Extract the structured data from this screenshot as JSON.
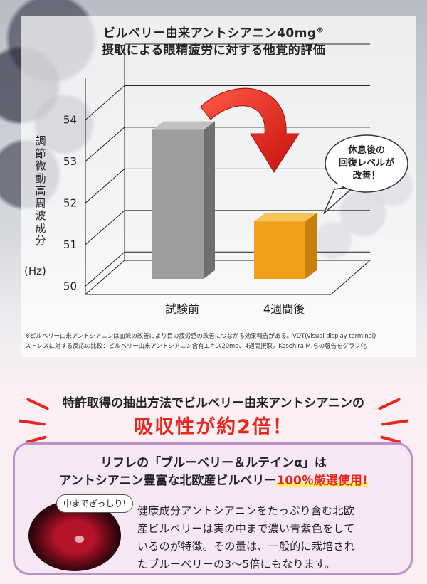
{
  "header": {
    "title_line1": "ビルベリー由来アントシアニン40mg",
    "title_mark": "※",
    "title_line2": "摂取による眼精疲労に対する他覚的評価"
  },
  "chart_data": {
    "type": "bar",
    "categories": [
      "試験前",
      "4週間後"
    ],
    "values": [
      54,
      51.8
    ],
    "ylabel": "調節微動高周波成分",
    "yunit": "(Hz)",
    "yticks": [
      "50",
      "51",
      "52",
      "53",
      "54"
    ],
    "ylim": [
      49.8,
      55
    ],
    "colors": [
      "#9d9d9d",
      "#f0a11a"
    ]
  },
  "callout": {
    "lines": [
      "休息後の",
      "回復レベルが",
      "改善！"
    ]
  },
  "footnote": {
    "line1": "※ビルベリー由来アントシアニンは血流の改善により目の疲労感の改善につながる効果報告がある。VDT(visual display terminal)",
    "line2": "ストレスに対する反応の比較：ビルベリー由来アントシアニン含有エキス20mg、4週間摂取。Kosehira M.らの報告をグラフ化"
  },
  "claim": {
    "line1": "特許取得の抽出方法でビルベリー由来アントシアニンの",
    "line2": "吸収性が約2倍！"
  },
  "card": {
    "line1": "リフレの「ブルーベリー＆ルテインα」は",
    "line2_prefix": "アントシアニン豊富な北欧産ビルベリー",
    "line2_highlight": "100％厳選使用!",
    "tag": "中までぎっしり!",
    "body": [
      "健康成分アントシアニンをたっぷり含む北欧",
      "産ビルベリーは実の中まで濃い青紫色をして",
      "いるのが特徴。その量は、一般的に栽培され",
      "たブルーベリーの3～5倍にもなります。"
    ]
  },
  "colors": {
    "accent_red": "#e8281e",
    "card_border": "#b991c7",
    "highlight_yellow": "#fff06a"
  }
}
